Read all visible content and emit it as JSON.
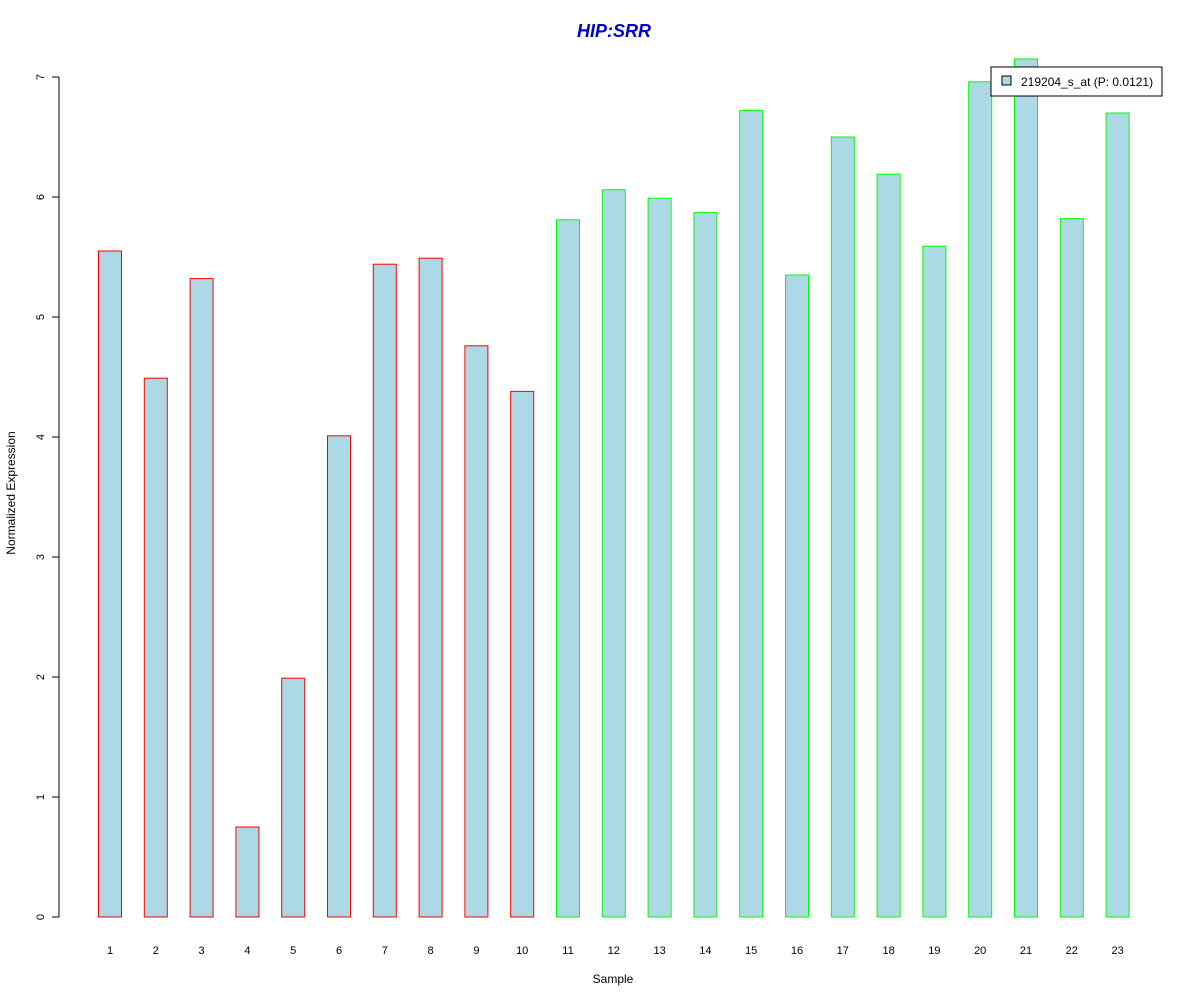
{
  "chart_data": {
    "type": "bar",
    "title": "HIP:SRR",
    "xlabel": "Sample",
    "ylabel": "Normalized Expression",
    "ylim": [
      0,
      7
    ],
    "yticks": [
      0,
      1,
      2,
      3,
      4,
      5,
      6,
      7
    ],
    "grid": false,
    "legend_position": "top-right",
    "categories": [
      "1",
      "2",
      "3",
      "4",
      "5",
      "6",
      "7",
      "8",
      "9",
      "10",
      "11",
      "12",
      "13",
      "14",
      "15",
      "16",
      "17",
      "18",
      "19",
      "20",
      "21",
      "22",
      "23"
    ],
    "series": [
      {
        "name": "219204_s_at (P: 0.0121)",
        "values": [
          5.55,
          4.49,
          5.32,
          0.75,
          1.99,
          4.01,
          5.44,
          5.49,
          4.76,
          4.38,
          5.81,
          6.06,
          5.99,
          5.87,
          6.72,
          5.35,
          6.5,
          6.19,
          5.59,
          6.96,
          7.15,
          5.82,
          6.7
        ],
        "fill": "#add8e6",
        "border_colors": [
          "#ff0000",
          "#ff0000",
          "#ff0000",
          "#ff0000",
          "#ff0000",
          "#ff0000",
          "#ff0000",
          "#ff0000",
          "#ff0000",
          "#ff0000",
          "#00ff00",
          "#00ff00",
          "#00ff00",
          "#00ff00",
          "#00ff00",
          "#00ff00",
          "#00ff00",
          "#00ff00",
          "#00ff00",
          "#00ff00",
          "#00ff00",
          "#00ff00",
          "#00ff00"
        ]
      }
    ]
  },
  "colors": {
    "title": "#0000cc",
    "bar_fill": "#add8e6",
    "group1_border": "#ff0000",
    "group2_border": "#00ff00"
  }
}
